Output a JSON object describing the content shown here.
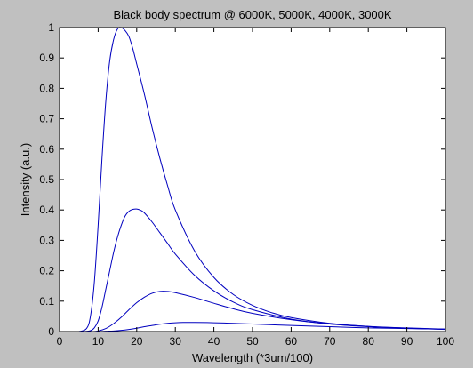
{
  "chart_data": {
    "type": "line",
    "title": "Black body spectrum @ 6000K, 5000K, 4000K, 3000K",
    "xlabel": "Wavelength (*3um/100)",
    "ylabel": "Intensity (a.u.)",
    "xlim": [
      0,
      100
    ],
    "ylim": [
      0,
      1
    ],
    "x_ticks": [
      "0",
      "10",
      "20",
      "30",
      "40",
      "50",
      "60",
      "70",
      "80",
      "90",
      "100"
    ],
    "y_ticks": [
      "0",
      "0.1",
      "0.2",
      "0.3",
      "0.4",
      "0.5",
      "0.6",
      "0.7",
      "0.8",
      "0.9",
      "1"
    ],
    "grid": false,
    "line_color": "#0000bf",
    "series": [
      {
        "x": [
          3,
          5,
          7,
          8,
          9,
          10,
          11,
          12,
          13,
          14,
          15,
          16,
          17,
          18,
          19,
          20,
          22,
          24,
          26,
          28,
          30,
          35,
          40,
          45,
          50,
          55,
          60,
          70,
          80,
          90,
          100
        ],
        "values": [
          0,
          0,
          0.01,
          0.05,
          0.16,
          0.35,
          0.57,
          0.76,
          0.89,
          0.96,
          0.995,
          1.0,
          0.99,
          0.97,
          0.93,
          0.88,
          0.78,
          0.67,
          0.57,
          0.48,
          0.4,
          0.265,
          0.178,
          0.122,
          0.086,
          0.062,
          0.046,
          0.027,
          0.017,
          0.011,
          0.008
        ]
      },
      {
        "x": [
          3,
          6,
          8,
          9,
          10,
          11,
          12,
          13,
          14,
          15,
          16,
          17,
          18,
          19,
          20,
          21,
          22,
          24,
          26,
          28,
          30,
          35,
          40,
          45,
          50,
          60,
          70,
          80,
          90,
          100
        ],
        "values": [
          0,
          0,
          0.003,
          0.012,
          0.035,
          0.08,
          0.14,
          0.2,
          0.26,
          0.31,
          0.35,
          0.38,
          0.396,
          0.402,
          0.403,
          0.399,
          0.39,
          0.36,
          0.325,
          0.29,
          0.255,
          0.185,
          0.134,
          0.097,
          0.072,
          0.041,
          0.025,
          0.016,
          0.011,
          0.007
        ]
      },
      {
        "x": [
          3,
          8,
          10,
          12,
          14,
          16,
          18,
          20,
          22,
          24,
          26,
          28,
          30,
          35,
          40,
          45,
          50,
          60,
          70,
          80,
          90,
          100
        ],
        "values": [
          0,
          0,
          0.002,
          0.01,
          0.026,
          0.047,
          0.072,
          0.095,
          0.113,
          0.126,
          0.132,
          0.132,
          0.128,
          0.112,
          0.093,
          0.075,
          0.06,
          0.039,
          0.025,
          0.017,
          0.012,
          0.008
        ]
      },
      {
        "x": [
          3,
          10,
          12,
          14,
          16,
          18,
          20,
          22,
          24,
          26,
          28,
          30,
          32,
          35,
          40,
          45,
          50,
          60,
          70,
          80,
          90,
          100
        ],
        "values": [
          0,
          0,
          0.001,
          0.002,
          0.004,
          0.007,
          0.011,
          0.016,
          0.02,
          0.024,
          0.027,
          0.029,
          0.03,
          0.03,
          0.029,
          0.027,
          0.025,
          0.02,
          0.016,
          0.012,
          0.01,
          0.008
        ]
      }
    ]
  }
}
